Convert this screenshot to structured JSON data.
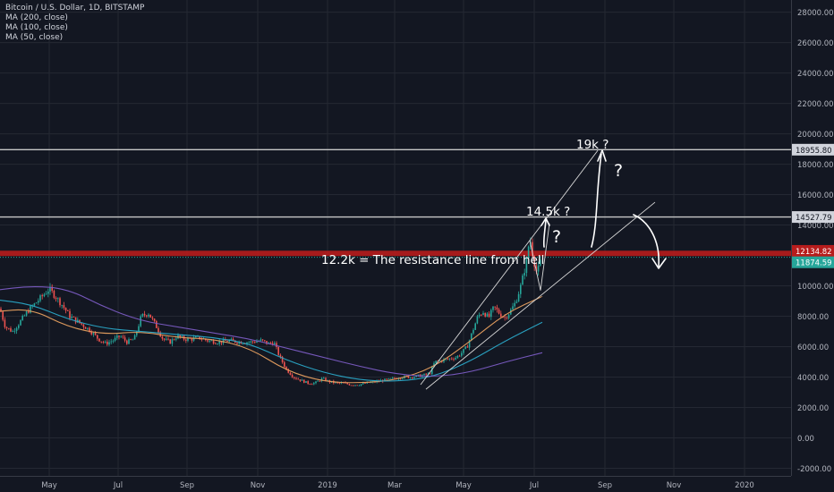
{
  "legend": {
    "title": "Bitcoin / U.S. Dollar, 1D, BITSTAMP",
    "ma200": "MA (200, close)",
    "ma100": "MA (100, close)",
    "ma50": "MA (50, close)"
  },
  "annotations": {
    "resistance": "12.2k = The resistance line from hell",
    "target_low": "14.5k ?",
    "target_high": "19k ?",
    "question_1": "?",
    "question_2": "?"
  },
  "price_labels": {
    "top_resistance": "18955.80",
    "mid_resistance": "14527.79",
    "red_line": "12134.82",
    "last_price": "11874.59"
  },
  "colors": {
    "background": "#131722",
    "grid": "#242833",
    "candle_up": "#26a69a",
    "candle_down": "#ef5350",
    "ma50": "#e8a060",
    "ma100": "#2aa8c8",
    "ma200": "#7b5cc4",
    "resistance_red": "#b71c1c",
    "last_price_green": "#26a69a"
  },
  "chart_data": {
    "type": "line",
    "x_axis_labels": [
      "May",
      "Jul",
      "Sep",
      "Nov",
      "2019",
      "Mar",
      "May",
      "Jul",
      "Sep",
      "Nov",
      "2020"
    ],
    "y_ticks": [
      28000,
      26000,
      24000,
      22000,
      20000,
      18000,
      16000,
      14000,
      10000,
      8000,
      6000,
      4000,
      2000,
      0,
      -2000
    ],
    "y_tick_labels": [
      "28000.00",
      "26000.00",
      "24000.00",
      "22000.00",
      "20000.00",
      "18000.00",
      "16000.00",
      "14000.00",
      "10000.00",
      "8000.00",
      "6000.00",
      "4000.00",
      "2000.00",
      "0.00",
      "-2000.00"
    ],
    "ylim": [
      -2500,
      28800
    ],
    "x_months": [
      "2018-04",
      "2018-05",
      "2018-06",
      "2018-07",
      "2018-08",
      "2018-09",
      "2018-10",
      "2018-11",
      "2018-12",
      "2019-01",
      "2019-02",
      "2019-03",
      "2019-04",
      "2019-05",
      "2019-06",
      "2019-07"
    ],
    "series": [
      {
        "name": "BTC/USD",
        "values": [
          8500,
          7400,
          6500,
          7600,
          6700,
          6600,
          6400,
          5200,
          3700,
          3700,
          3600,
          4000,
          5300,
          8200,
          11000,
          11874.59
        ]
      },
      {
        "name": "MA (50, close)",
        "values": [
          8300,
          8500,
          7300,
          6800,
          7000,
          6600,
          6500,
          5900,
          4400,
          3700,
          3600,
          3800,
          4600,
          6300,
          8200,
          9300
        ]
      },
      {
        "name": "MA (100, close)",
        "values": [
          9100,
          8800,
          7800,
          7200,
          7000,
          6800,
          6600,
          6200,
          5100,
          4300,
          3800,
          3700,
          4000,
          5000,
          6400,
          7600
        ]
      },
      {
        "name": "MA (200, close)",
        "values": [
          9700,
          10000,
          9800,
          8600,
          7700,
          7300,
          6900,
          6500,
          5900,
          5300,
          4700,
          4200,
          4000,
          4300,
          5000,
          5600
        ]
      }
    ],
    "horizontal_lines": [
      18955.8,
      14527.79,
      12134.82
    ]
  }
}
